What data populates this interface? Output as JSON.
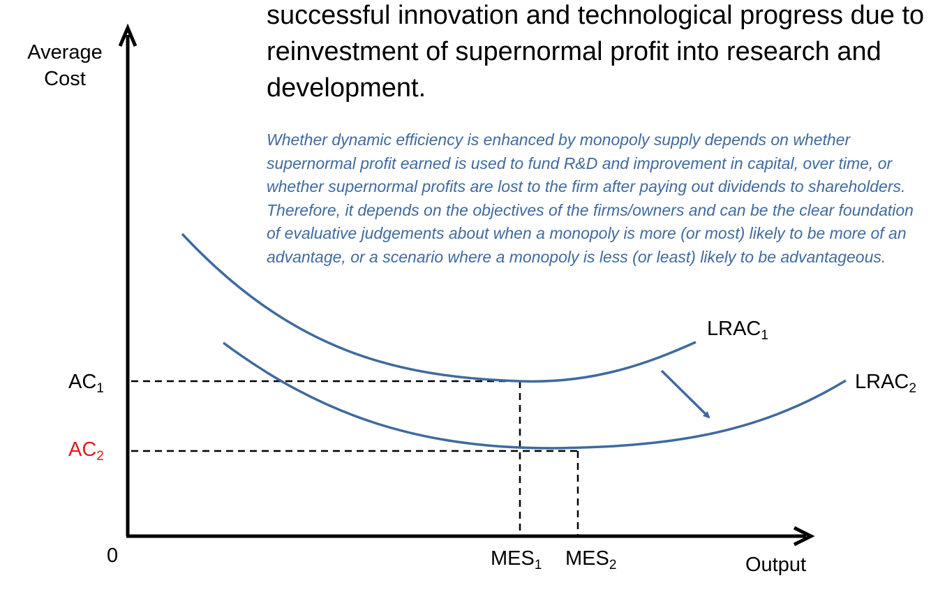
{
  "header": {
    "heading": "successful innovation and technological progress due to reinvestment of supernormal profit into research and development.",
    "note": "Whether dynamic efficiency is enhanced by monopoly supply depends on whether supernormal profit earned is used to fund R&D and improvement in capital, over time, or whether supernormal profits are lost to the firm after paying out dividends to shareholders. Therefore, it depends on the objectives of the firms/owners and can be the clear foundation of evaluative judgements about when a monopoly is more (or most) likely to be more of an advantage, or a scenario where a monopoly is less (or least) likely to be advantageous."
  },
  "axes": {
    "y_title_line1": "Average",
    "y_title_line2": "Cost",
    "x_title": "Output",
    "origin": "0"
  },
  "labels": {
    "ac1_base": "AC",
    "ac1_sub": "1",
    "ac2_base": "AC",
    "ac2_sub": "2",
    "mes1_base": "MES",
    "mes1_sub": "1",
    "mes2_base": "MES",
    "mes2_sub": "2",
    "lrac1_base": "LRAC",
    "lrac1_sub": "1",
    "lrac2_base": "LRAC",
    "lrac2_sub": "2"
  },
  "colors": {
    "curve": "#3F6A9E",
    "note_text": "#3F6A9E",
    "ac2_label": "#E31B1B",
    "axis": "#000000"
  }
}
